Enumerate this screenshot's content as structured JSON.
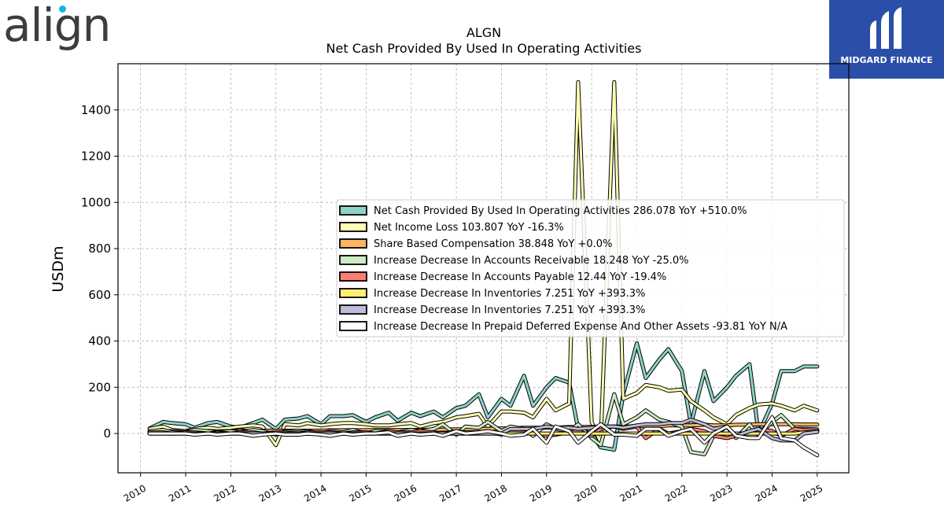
{
  "logos": {
    "left_text": "align",
    "right_text": "MIDGARD FINANCE"
  },
  "chart_data": {
    "type": "line",
    "title": "ALGN",
    "subtitle": "Net Cash Provided By Used In Operating Activities",
    "ylabel": "USDm",
    "xlabel": "",
    "xlim": [
      2009.5,
      2025.7
    ],
    "ylim": [
      -170,
      1600
    ],
    "x_ticks": [
      2010,
      2011,
      2012,
      2013,
      2014,
      2015,
      2016,
      2017,
      2018,
      2019,
      2020,
      2021,
      2022,
      2023,
      2024,
      2025
    ],
    "y_ticks": [
      0,
      200,
      400,
      600,
      800,
      1000,
      1200,
      1400
    ],
    "grid": true,
    "legend_position": "center-right",
    "x": [
      2010.2,
      2010.5,
      2010.7,
      2011.0,
      2011.2,
      2011.5,
      2011.7,
      2012.0,
      2012.2,
      2012.5,
      2012.7,
      2013.0,
      2013.2,
      2013.5,
      2013.7,
      2014.0,
      2014.2,
      2014.5,
      2014.7,
      2015.0,
      2015.2,
      2015.5,
      2015.7,
      2016.0,
      2016.2,
      2016.5,
      2016.7,
      2017.0,
      2017.2,
      2017.5,
      2017.7,
      2018.0,
      2018.2,
      2018.5,
      2018.7,
      2019.0,
      2019.2,
      2019.5,
      2019.7,
      2020.0,
      2020.2,
      2020.5,
      2020.7,
      2021.0,
      2021.2,
      2021.5,
      2021.7,
      2022.0,
      2022.2,
      2022.5,
      2022.7,
      2023.0,
      2023.2,
      2023.5,
      2023.7,
      2024.0,
      2024.2,
      2024.5,
      2024.7,
      2025.0
    ],
    "series": [
      {
        "name": "Net Cash Provided By Used In Operating Activities  286.078 YoY +510.0%",
        "color": "#8dd3c7",
        "values": [
          22,
          50,
          45,
          40,
          25,
          45,
          50,
          30,
          25,
          45,
          60,
          20,
          60,
          65,
          75,
          40,
          75,
          75,
          80,
          50,
          70,
          90,
          55,
          90,
          75,
          95,
          70,
          110,
          120,
          170,
          70,
          150,
          120,
          250,
          120,
          200,
          240,
          220,
          20,
          0,
          -60,
          -70,
          170,
          390,
          240,
          320,
          365,
          270,
          40,
          270,
          140,
          200,
          250,
          300,
          0,
          130,
          270,
          270,
          290,
          290
        ],
        "end_value": 286.078
      },
      {
        "name": "Net Income Loss  103.807 YoY -16.3%",
        "color": "#ffffb3",
        "values": [
          20,
          30,
          15,
          10,
          20,
          25,
          20,
          25,
          30,
          35,
          30,
          -50,
          40,
          35,
          45,
          35,
          40,
          45,
          45,
          40,
          35,
          35,
          40,
          45,
          30,
          45,
          50,
          70,
          75,
          85,
          30,
          95,
          95,
          90,
          70,
          150,
          100,
          130,
          1520,
          50,
          -40,
          1520,
          150,
          175,
          210,
          200,
          185,
          190,
          140,
          100,
          70,
          40,
          80,
          110,
          125,
          130,
          120,
          100,
          120,
          100
        ],
        "end_value": 103.807
      },
      {
        "name": "Share Based Compensation  38.848 YoY +0.0%",
        "color": "#fdb462",
        "values": [
          10,
          10,
          10,
          10,
          10,
          10,
          10,
          10,
          12,
          12,
          12,
          12,
          12,
          12,
          12,
          12,
          14,
          14,
          14,
          14,
          15,
          15,
          15,
          15,
          16,
          16,
          17,
          18,
          18,
          20,
          20,
          22,
          22,
          25,
          25,
          25,
          25,
          28,
          28,
          28,
          30,
          30,
          30,
          32,
          32,
          32,
          35,
          35,
          35,
          38,
          35,
          35,
          38,
          38,
          40,
          40,
          40,
          40,
          39,
          39
        ],
        "end_value": 38.848
      },
      {
        "name": "Increase Decrease In Accounts Receivable  18.248 YoY -25.0%",
        "color": "#ccebc5",
        "values": [
          10,
          15,
          5,
          5,
          15,
          10,
          5,
          10,
          5,
          15,
          10,
          -5,
          10,
          5,
          10,
          0,
          10,
          5,
          15,
          0,
          10,
          10,
          5,
          15,
          10,
          20,
          40,
          -5,
          30,
          25,
          50,
          10,
          30,
          20,
          -10,
          40,
          20,
          10,
          40,
          -20,
          -50,
          170,
          40,
          70,
          100,
          60,
          50,
          30,
          -80,
          -90,
          -10,
          30,
          -20,
          40,
          -10,
          50,
          80,
          20,
          20,
          18
        ],
        "end_value": 18.248
      },
      {
        "name": "Increase Decrease In Accounts Payable  12.44 YoY -19.4%",
        "color": "#fb8072",
        "values": [
          5,
          5,
          0,
          5,
          5,
          0,
          5,
          0,
          5,
          5,
          0,
          5,
          5,
          0,
          5,
          5,
          5,
          0,
          5,
          5,
          0,
          10,
          5,
          5,
          10,
          5,
          0,
          10,
          5,
          5,
          10,
          -5,
          10,
          5,
          5,
          -10,
          -5,
          5,
          10,
          -10,
          20,
          30,
          20,
          30,
          -20,
          20,
          0,
          10,
          20,
          10,
          -10,
          -20,
          -10,
          5,
          20,
          10,
          -10,
          20,
          15,
          12
        ],
        "end_value": 12.44
      },
      {
        "name": "Increase Decrease In Inventories  7.251 YoY +393.3%",
        "color": "#ffed6f",
        "values": [
          0,
          0,
          0,
          0,
          0,
          0,
          0,
          0,
          0,
          0,
          0,
          0,
          0,
          0,
          0,
          0,
          0,
          0,
          0,
          0,
          0,
          0,
          0,
          0,
          0,
          0,
          0,
          0,
          0,
          0,
          0,
          0,
          0,
          0,
          0,
          0,
          0,
          0,
          0,
          0,
          0,
          0,
          0,
          0,
          0,
          0,
          0,
          0,
          0,
          0,
          0,
          0,
          0,
          0,
          0,
          0,
          0,
          0,
          5,
          7
        ],
        "end_value": 7.251
      },
      {
        "name": "Increase Decrease In Inventories  7.251 YoY +393.3%",
        "color": "#bebada",
        "values": [
          0,
          0,
          0,
          0,
          0,
          0,
          0,
          0,
          0,
          0,
          0,
          0,
          0,
          0,
          0,
          0,
          0,
          0,
          0,
          0,
          0,
          0,
          0,
          0,
          0,
          0,
          0,
          0,
          0,
          0,
          0,
          0,
          20,
          20,
          20,
          30,
          25,
          25,
          20,
          25,
          30,
          30,
          25,
          35,
          40,
          40,
          45,
          45,
          60,
          40,
          20,
          30,
          -10,
          10,
          20,
          -20,
          -30,
          -30,
          0,
          7
        ],
        "end_value": 7.251
      },
      {
        "name": "Increase Decrease In Prepaid Deferred Expense And Other Assets  -93.81 YoY N/A",
        "color": "#ffffff",
        "values": [
          0,
          0,
          0,
          0,
          -5,
          0,
          -5,
          0,
          0,
          -10,
          -5,
          0,
          -5,
          -5,
          0,
          -5,
          -10,
          0,
          -5,
          0,
          0,
          5,
          -10,
          0,
          -5,
          0,
          -10,
          10,
          0,
          5,
          10,
          0,
          -10,
          -5,
          20,
          -40,
          30,
          10,
          -40,
          10,
          40,
          -5,
          -5,
          -10,
          20,
          20,
          -10,
          10,
          20,
          -40,
          0,
          30,
          -10,
          -20,
          -20,
          70,
          -20,
          -30,
          -60,
          -94
        ],
        "end_value": -93.81
      }
    ]
  }
}
